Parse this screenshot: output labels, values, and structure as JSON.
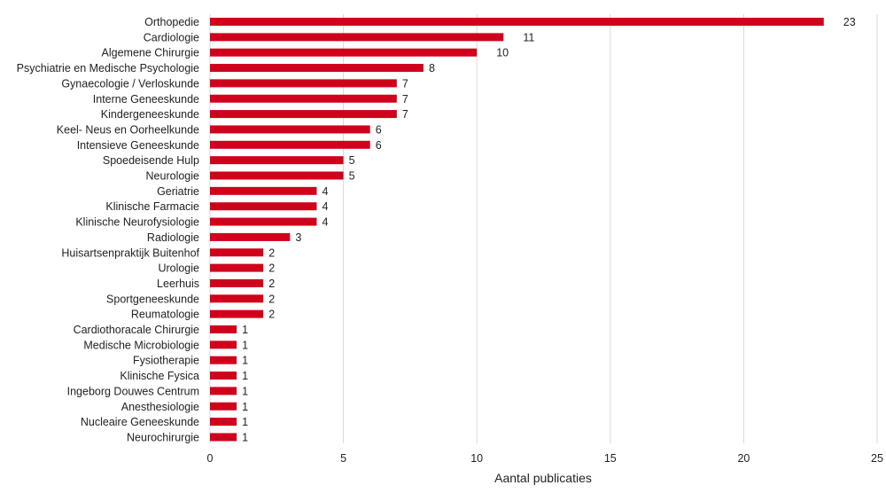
{
  "chart_data": {
    "type": "bar",
    "orientation": "horizontal",
    "categories": [
      "Orthopedie",
      "Cardiologie",
      "Algemene Chirurgie",
      "Psychiatrie en Medische Psychologie",
      "Gynaecologie / Verloskunde",
      "Interne Geneeskunde",
      "Kindergeneeskunde",
      "Keel- Neus en Oorheelkunde",
      "Intensieve Geneeskunde",
      "Spoedeisende Hulp",
      "Neurologie",
      "Geriatrie",
      "Klinische Farmacie",
      "Klinische Neurofysiologie",
      "Radiologie",
      "Huisartsenpraktijk Buitenhof",
      "Urologie",
      "Leerhuis",
      "Sportgeneeskunde",
      "Reumatologie",
      "Cardiothoracale Chirurgie",
      "Medische Microbiologie",
      "Fysiotherapie",
      "Klinische Fysica",
      "Ingeborg Douwes Centrum",
      "Anesthesiologie",
      "Nucleaire Geneeskunde",
      "Neurochirurgie"
    ],
    "values": [
      23,
      11,
      10,
      8,
      7,
      7,
      7,
      6,
      6,
      5,
      5,
      4,
      4,
      4,
      3,
      2,
      2,
      2,
      2,
      2,
      1,
      1,
      1,
      1,
      1,
      1,
      1,
      1
    ],
    "xlabel": "Aantal publicaties",
    "ylabel": "",
    "xlim": [
      0,
      25
    ],
    "xticks": [
      0,
      5,
      10,
      15,
      20,
      25
    ],
    "grid": "vertical",
    "bar_color": "#d0021b",
    "data_labels": true
  }
}
